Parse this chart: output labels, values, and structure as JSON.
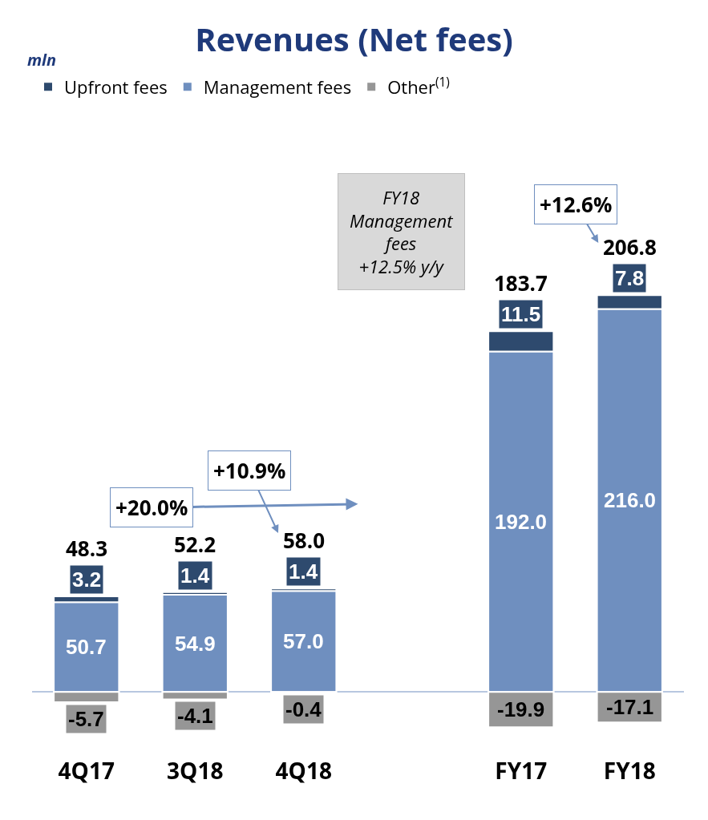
{
  "chart_data": {
    "type": "bar",
    "title": "Revenues (Net fees)",
    "stacked": true,
    "data_labels": true,
    "legend": "top left",
    "grid": false,
    "categories": [
      "4Q17",
      "3Q18",
      "4Q18",
      null,
      "FY17",
      "FY18"
    ],
    "series": [
      {
        "name": "Management fees",
        "color": "#6f8fbf",
        "values": [
          50.7,
          54.9,
          57.0,
          null,
          192.0,
          216.0
        ],
        "value_labels": [
          "50.7",
          "54.9",
          "57.0",
          null,
          "192.0",
          "216.0"
        ]
      },
      {
        "name": "Upfront fees",
        "color": "#2e4a6e",
        "values": [
          3.2,
          1.4,
          1.4,
          null,
          11.5,
          7.8
        ],
        "value_labels": [
          "3.2",
          "1.4",
          "1.4",
          null,
          "11.5",
          "7.8"
        ]
      },
      {
        "name": "Other$^{(1)}$",
        "color": "#969696",
        "values": [
          -5.7,
          -4.1,
          -0.4,
          null,
          -19.9,
          -17.1
        ],
        "value_labels": [
          "-5.7",
          "-4.1",
          "-0.4",
          null,
          "-19.9",
          "-17.1"
        ]
      }
    ],
    "totals": [
      "48.3",
      "52.2",
      "58.0",
      null,
      "183.7",
      "206.8"
    ],
    "annotations": [
      "mln",
      "FY18\nManagement\nfees\n+12.5% y/y",
      "+20.0%",
      "+10.9%",
      "+12.6%"
    ]
  }
}
